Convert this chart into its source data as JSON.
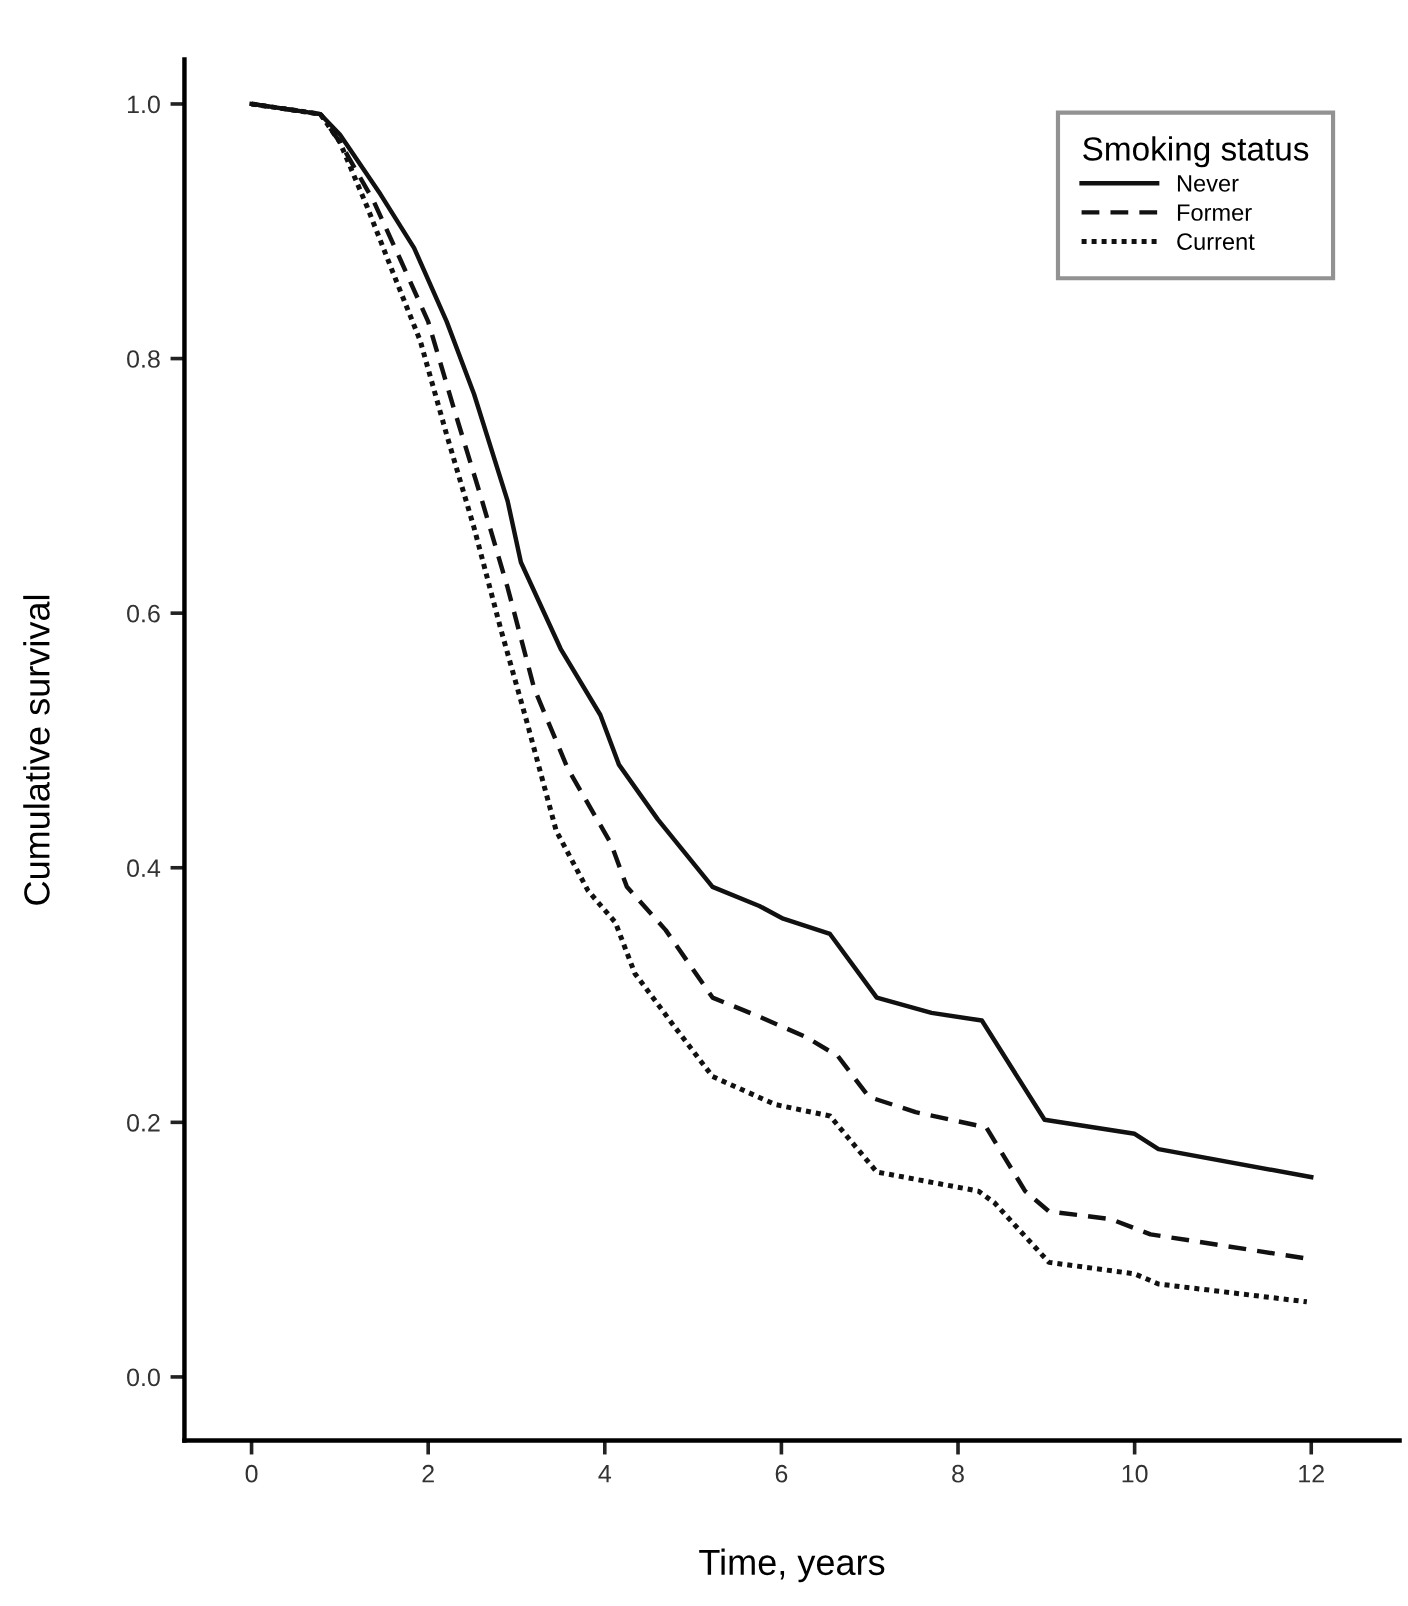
{
  "chart_data": {
    "type": "line",
    "xlabel": "Time, years",
    "ylabel": "Cumulative survival",
    "legend_title": "Smoking status",
    "legend": "top right",
    "grid": false,
    "marker": "none",
    "xlim": [
      -0.76,
      13.0
    ],
    "xticks": [
      0,
      2,
      4,
      6,
      8,
      10,
      12
    ],
    "ylim": [
      -0.05,
      1.035
    ],
    "yticks": [
      {
        "value": 0,
        "label": "0.0"
      },
      {
        "value": 0.2,
        "label": "0.2"
      },
      {
        "value": 0.4,
        "label": "0.4"
      },
      {
        "value": 0.6,
        "label": "0.6"
      },
      {
        "value": 0.8,
        "label": "0.8"
      },
      {
        "value": 1,
        "label": "1.0"
      }
    ],
    "series": [
      {
        "name": "Never",
        "color": "#111111",
        "line_style": "solid",
        "x": [
          0,
          0.78,
          1.0,
          1.46,
          1.84,
          2.21,
          2.52,
          2.9,
          3.05,
          3.5,
          3.95,
          4.16,
          4.6,
          5.22,
          5.75,
          6.02,
          6.55,
          7.08,
          7.7,
          8.27,
          8.98,
          10.0,
          10.27,
          12
        ],
        "values": [
          1.0,
          0.992,
          0.976,
          0.929,
          0.887,
          0.829,
          0.772,
          0.688,
          0.64,
          0.572,
          0.52,
          0.481,
          0.438,
          0.385,
          0.37,
          0.36,
          0.348,
          0.298,
          0.286,
          0.28,
          0.202,
          0.191,
          0.179,
          0.157
        ]
      },
      {
        "name": "Former",
        "color": "#111111",
        "line_style": "dashed",
        "x": [
          0,
          0.78,
          1.0,
          1.38,
          1.69,
          2.0,
          2.29,
          2.59,
          2.9,
          3.2,
          3.58,
          4.07,
          4.25,
          4.69,
          5.22,
          5.75,
          6.28,
          6.64,
          6.99,
          7.52,
          8.32,
          8.76,
          9.03,
          9.73,
          10.18,
          11.95
        ],
        "values": [
          1.0,
          0.992,
          0.97,
          0.924,
          0.877,
          0.829,
          0.761,
          0.693,
          0.62,
          0.541,
          0.478,
          0.419,
          0.385,
          0.351,
          0.298,
          0.283,
          0.267,
          0.252,
          0.22,
          0.208,
          0.196,
          0.146,
          0.13,
          0.124,
          0.112,
          0.093
        ]
      },
      {
        "name": "Current",
        "color": "#111111",
        "line_style": "dotted",
        "x": [
          0,
          0.78,
          1.0,
          1.31,
          1.61,
          1.91,
          2.21,
          2.52,
          2.82,
          3.12,
          3.45,
          3.81,
          4.12,
          4.34,
          4.78,
          5.22,
          5.93,
          6.55,
          7.08,
          8.23,
          8.41,
          9.03,
          10.0,
          10.27,
          11.95
        ],
        "values": [
          1.0,
          0.992,
          0.97,
          0.919,
          0.866,
          0.814,
          0.74,
          0.667,
          0.588,
          0.514,
          0.429,
          0.382,
          0.357,
          0.317,
          0.276,
          0.236,
          0.214,
          0.205,
          0.161,
          0.146,
          0.137,
          0.09,
          0.081,
          0.073,
          0.059
        ]
      }
    ]
  }
}
